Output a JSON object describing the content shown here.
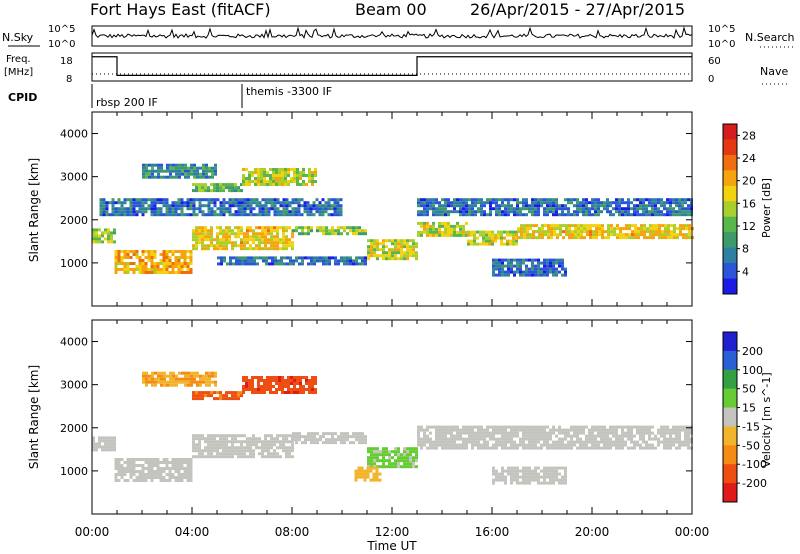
{
  "header": {
    "station": "Fort Hays East (fitACF)",
    "beam": "Beam 00",
    "dates": "26/Apr/2015 - 27/Apr/2015"
  },
  "top_panels": {
    "nsky_label": "N.Sky",
    "nsky_ticks": [
      "10^5",
      "10^0"
    ],
    "nsearch_label": "N.Search",
    "freq_label": "Freq.",
    "freq_unit": "[MHz]",
    "freq_ticks": [
      "18",
      "8"
    ],
    "nave_label": "Nave",
    "nave_ticks": [
      "60",
      "0"
    ],
    "cpid_label": "CPID",
    "cpid_entries": [
      {
        "text": "rbsp 200 IF",
        "start_hour": 0
      },
      {
        "text": "themis -3300 IF",
        "start_hour": 6
      }
    ],
    "freq_steps": [
      {
        "from": 0,
        "to": 1,
        "mhz": 18
      },
      {
        "from": 1,
        "to": 13,
        "mhz": 8
      },
      {
        "from": 13,
        "to": 24,
        "mhz": 18
      }
    ]
  },
  "colors": {
    "power_scale": [
      "#1b1be6",
      "#2b55d9",
      "#2f7fa3",
      "#3d9a6a",
      "#58b64a",
      "#a8cf2c",
      "#f2d10f",
      "#f5a40d",
      "#f06d10",
      "#e33812",
      "#d61d1d"
    ],
    "velocity_scale": [
      "#1f1fd0",
      "#2a60d6",
      "#34a044",
      "#66cc33",
      "#c4c4bf",
      "#f2b42a",
      "#f58a15",
      "#ee4e12",
      "#df1a1a"
    ]
  },
  "chart_data": [
    {
      "type": "heatmap",
      "name": "power",
      "ylabel": "Slant Range [km]",
      "yticks": [
        "1000",
        "2000",
        "3000",
        "4000"
      ],
      "ylim": [
        0,
        4500
      ],
      "xlim_hours": [
        0,
        24
      ],
      "colorbar": {
        "label": "Power [dB]",
        "ticks": [
          "4",
          "8",
          "12",
          "16",
          "20",
          "24",
          "28"
        ],
        "range": [
          0,
          30
        ]
      },
      "bands": [
        {
          "h0": 0,
          "h1": 0.9,
          "r0": 1500,
          "r1": 1800,
          "v": 14
        },
        {
          "h0": 0.9,
          "h1": 4,
          "r0": 800,
          "r1": 1300,
          "v": 20
        },
        {
          "h0": 4,
          "h1": 8,
          "r0": 1300,
          "r1": 1850,
          "v": 18
        },
        {
          "h0": 8,
          "h1": 11,
          "r0": 1650,
          "r1": 1850,
          "v": 14
        },
        {
          "h0": 11,
          "h1": 13,
          "r0": 1100,
          "r1": 1550,
          "v": 16
        },
        {
          "h0": 13,
          "h1": 15,
          "r0": 1650,
          "r1": 1950,
          "v": 16
        },
        {
          "h0": 15,
          "h1": 17,
          "r0": 1450,
          "r1": 1750,
          "v": 16
        },
        {
          "h0": 17,
          "h1": 24,
          "r0": 1600,
          "r1": 1900,
          "v": 18
        },
        {
          "h0": 4,
          "h1": 6,
          "r0": 2650,
          "r1": 2850,
          "v": 12
        },
        {
          "h0": 6,
          "h1": 9,
          "r0": 2800,
          "r1": 3200,
          "v": 16
        },
        {
          "h0": 2,
          "h1": 5,
          "r0": 3000,
          "r1": 3300,
          "v": 8
        },
        {
          "h0": 5,
          "h1": 11,
          "r0": 950,
          "r1": 1150,
          "v": 6
        },
        {
          "h0": 16,
          "h1": 19,
          "r0": 700,
          "r1": 1100,
          "v": 6
        },
        {
          "h0": 0.3,
          "h1": 10,
          "r0": 2100,
          "r1": 2500,
          "v": 6
        },
        {
          "h0": 13,
          "h1": 24,
          "r0": 2100,
          "r1": 2500,
          "v": 6
        }
      ]
    },
    {
      "type": "heatmap",
      "name": "velocity",
      "xlabel": "Time UT",
      "xticks": [
        "00:00",
        "04:00",
        "08:00",
        "12:00",
        "16:00",
        "20:00",
        "00:00"
      ],
      "ylabel": "Slant Range [km]",
      "yticks": [
        "1000",
        "2000",
        "3000",
        "4000"
      ],
      "ylim": [
        0,
        4500
      ],
      "xlim_hours": [
        0,
        24
      ],
      "colorbar": {
        "label": "Velocity [m s^-1]",
        "ticks": [
          "200",
          "100",
          "50",
          "15",
          "-15",
          "-50",
          "-100",
          "-200"
        ],
        "range": [
          -250,
          250
        ]
      },
      "bands": [
        {
          "h0": 0,
          "h1": 0.9,
          "r0": 1500,
          "r1": 1800,
          "v": 0
        },
        {
          "h0": 0.9,
          "h1": 4,
          "r0": 800,
          "r1": 1300,
          "v": 0
        },
        {
          "h0": 4,
          "h1": 8,
          "r0": 1300,
          "r1": 1850,
          "v": 0
        },
        {
          "h0": 8,
          "h1": 11,
          "r0": 1650,
          "r1": 1900,
          "v": 0
        },
        {
          "h0": 11,
          "h1": 13,
          "r0": 1100,
          "r1": 1550,
          "v": 40
        },
        {
          "h0": 13,
          "h1": 24,
          "r0": 1550,
          "r1": 2050,
          "v": 0
        },
        {
          "h0": 4,
          "h1": 6,
          "r0": 2650,
          "r1": 2850,
          "v": -150
        },
        {
          "h0": 6,
          "h1": 9,
          "r0": 2800,
          "r1": 3200,
          "v": -180
        },
        {
          "h0": 2,
          "h1": 5,
          "r0": 3000,
          "r1": 3300,
          "v": -80
        },
        {
          "h0": 10.5,
          "h1": 11.5,
          "r0": 800,
          "r1": 1100,
          "v": -60
        },
        {
          "h0": 16,
          "h1": 19,
          "r0": 700,
          "r1": 1100,
          "v": 0
        }
      ]
    }
  ]
}
